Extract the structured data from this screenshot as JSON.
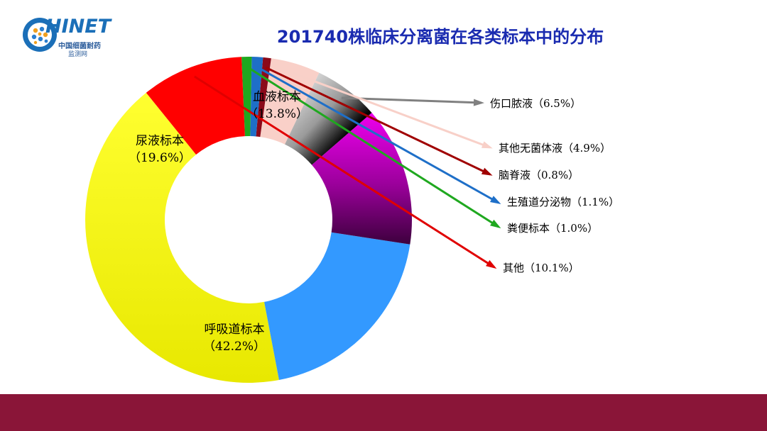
{
  "logo": {
    "title": "HINET",
    "subtitle_line1": "中国细菌耐药",
    "subtitle_line2": "监测网"
  },
  "chart_data": {
    "type": "pie",
    "title": "201740株临床分离菌在各类标本中的分布",
    "slices": [
      {
        "name": "伤口脓液",
        "value": 6.5,
        "label": "伤口脓液（6.5%）",
        "color": "#ffffff"
      },
      {
        "name": "其他无菌体液",
        "value": 4.9,
        "label": "其他无菌体液（4.9%）",
        "color": "#f9d0c8"
      },
      {
        "name": "脑脊液",
        "value": 0.8,
        "label": "脑脊液（0.8%）",
        "color": "#8b0a1a"
      },
      {
        "name": "生殖道分泌物",
        "value": 1.1,
        "label": "生殖道分泌物（1.1%）",
        "color": "#1e6fc8"
      },
      {
        "name": "粪便标本",
        "value": 1.0,
        "label": "粪便标本（1.0%）",
        "color": "#1fa81f"
      },
      {
        "name": "其他",
        "value": 10.1,
        "label": "其他（10.1%）",
        "color": "#ff0000"
      },
      {
        "name": "呼吸道标本",
        "value": 42.2,
        "label": "呼吸道标本",
        "pct_label": "（42.2%）",
        "color": "#ffff00"
      },
      {
        "name": "尿液标本",
        "value": 19.6,
        "label": "尿液标本",
        "pct_label": "（19.6%）",
        "color": "#3399ff"
      },
      {
        "name": "血液标本",
        "value": 13.8,
        "label": "血液标本",
        "pct_label": "（13.8%）",
        "color": "#cc00cc"
      }
    ],
    "legend_placement": "callouts-right"
  }
}
